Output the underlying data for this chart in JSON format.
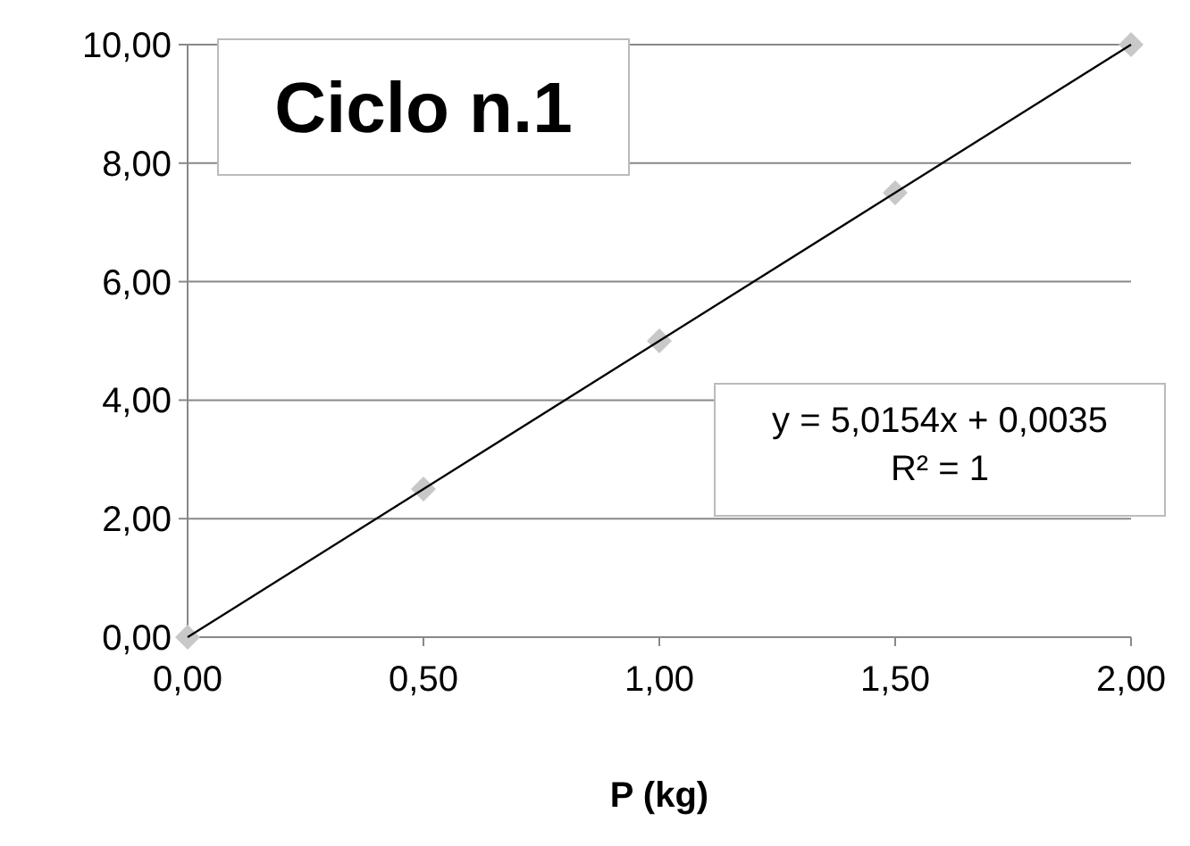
{
  "chart_data": {
    "type": "scatter",
    "title": "Ciclo n.1",
    "xlabel": "P (kg)",
    "x": [
      0,
      0.5,
      1,
      1.5,
      2
    ],
    "series": [
      {
        "color": "#c8c8c8",
        "marker": "diamond",
        "values": [
          0,
          2.5,
          5,
          7.5,
          10
        ]
      },
      {
        "type": "line",
        "color": "#000000",
        "x": [
          0,
          2
        ],
        "values": [
          0,
          10
        ],
        "marker": "none"
      }
    ],
    "annotations": [
      "y = 5,0154x + 0,0035\nR² = 1"
    ],
    "xlim": [
      0,
      2
    ],
    "ylim": [
      0,
      10
    ],
    "xticks": [
      {
        "value": 0,
        "label": "0,00"
      },
      {
        "value": 0.5,
        "label": "0,50"
      },
      {
        "value": 1,
        "label": "1,00"
      },
      {
        "value": 1.5,
        "label": "1,50"
      },
      {
        "value": 2,
        "label": "2,00"
      }
    ],
    "yticks": [
      {
        "value": 0,
        "label": "0,00"
      },
      {
        "value": 2,
        "label": "2,00"
      },
      {
        "value": 4,
        "label": "4,00"
      },
      {
        "value": 6,
        "label": "6,00"
      },
      {
        "value": 8,
        "label": "8,00"
      },
      {
        "value": 10,
        "label": "10,00"
      }
    ],
    "grid": "y"
  }
}
